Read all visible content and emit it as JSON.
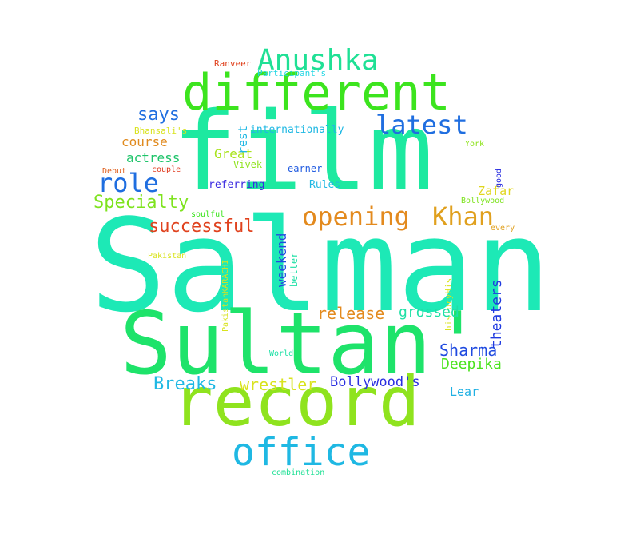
{
  "words": [
    {
      "text": "Salman",
      "color": "#1de9b6"
    },
    {
      "text": "film",
      "color": "#1de9a0"
    },
    {
      "text": "Sultan'",
      "color": "#1ee36a"
    },
    {
      "text": "record",
      "color": "#8fe31e"
    },
    {
      "text": "different",
      "color": "#3ce41e"
    },
    {
      "text": "office",
      "color": "#1fb8e3"
    },
    {
      "text": "Anushka",
      "color": "#1fe095"
    },
    {
      "text": "latest",
      "color": "#1f6ee0"
    },
    {
      "text": "opening",
      "color": "#e38a1e"
    },
    {
      "text": "Khan",
      "color": "#e0a01e"
    },
    {
      "text": "role",
      "color": "#1f6ee0"
    },
    {
      "text": "Specialty",
      "color": "#7ee31e"
    },
    {
      "text": "successful",
      "color": "#e0421e"
    },
    {
      "text": "says",
      "color": "#1f6ee0"
    },
    {
      "text": "release",
      "color": "#e38a1e"
    },
    {
      "text": "grossed",
      "color": "#1fe0a6"
    },
    {
      "text": "Sharma",
      "color": "#1f4ae0"
    },
    {
      "text": "Deepika",
      "color": "#4be31e"
    },
    {
      "text": "Breaks",
      "color": "#1fb8e3"
    },
    {
      "text": "wrestler",
      "color": "#d9e31e"
    },
    {
      "text": "Bollywood's",
      "color": "#2a2ee0"
    },
    {
      "text": "Lear",
      "color": "#1fb0e3"
    },
    {
      "text": "theaters",
      "color": "#1f3ae0"
    },
    {
      "text": "weekend",
      "color": "#1f4ae0"
    },
    {
      "text": "course",
      "color": "#e08a1e"
    },
    {
      "text": "actress",
      "color": "#1ec46a"
    },
    {
      "text": "Great",
      "color": "#a9e31e"
    },
    {
      "text": "Zafar",
      "color": "#e0d61e"
    },
    {
      "text": "rest",
      "color": "#1fb8e3"
    },
    {
      "text": "internationally",
      "color": "#1fb8e3"
    },
    {
      "text": "referring",
      "color": "#3a2ae0"
    },
    {
      "text": "Rules",
      "color": "#1fb8e3"
    },
    {
      "text": "earner",
      "color": "#1f5ae0"
    },
    {
      "text": "Vivek",
      "color": "#8fe31e"
    },
    {
      "text": "better",
      "color": "#1fe0a6"
    },
    {
      "text": "historyHis",
      "color": "#d9e31e"
    },
    {
      "text": "PakistanKARACHI",
      "color": "#d9e31e"
    },
    {
      "text": "Ranveer",
      "color": "#e0421e"
    },
    {
      "text": "Participant's",
      "color": "#1fd6e3"
    },
    {
      "text": "Bhansali's",
      "color": "#d9e31e"
    },
    {
      "text": "Debut",
      "color": "#e0601e"
    },
    {
      "text": "couple",
      "color": "#e03a1e"
    },
    {
      "text": "York",
      "color": "#8fe31e"
    },
    {
      "text": "good",
      "color": "#2a2ee0"
    },
    {
      "text": "Bollywood",
      "color": "#7ee31e"
    },
    {
      "text": "every",
      "color": "#e0a01e"
    },
    {
      "text": "soulful",
      "color": "#3ce41e"
    },
    {
      "text": "Pakistan",
      "color": "#d9e31e"
    },
    {
      "text": "World",
      "color": "#1fe0a6"
    },
    {
      "text": "combination",
      "color": "#1fe095"
    }
  ]
}
